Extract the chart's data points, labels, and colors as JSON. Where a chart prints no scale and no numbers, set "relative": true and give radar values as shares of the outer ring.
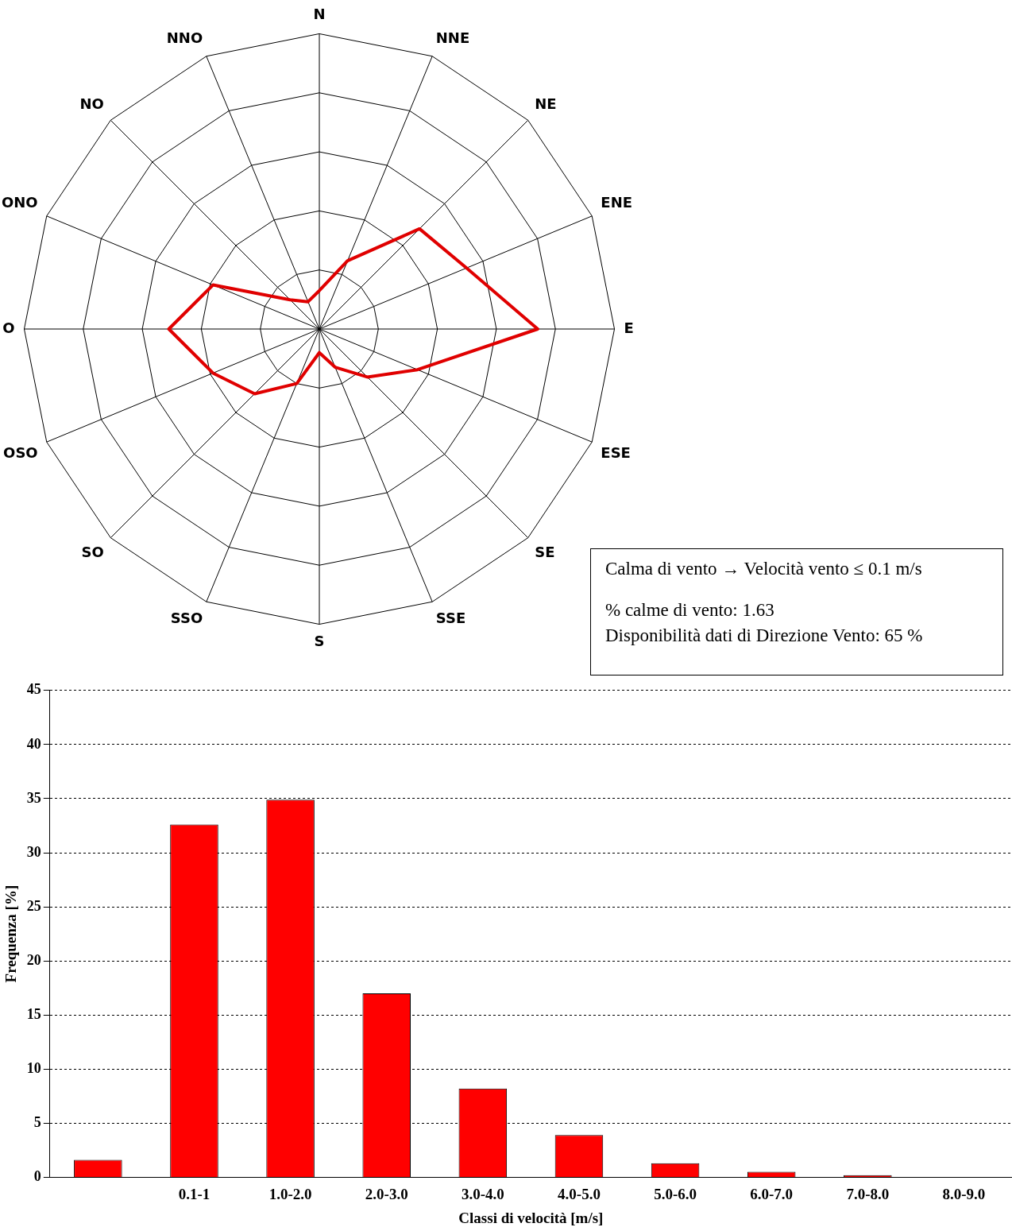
{
  "chart_data": [
    {
      "type": "radar",
      "relative": true,
      "categories": [
        "N",
        "NNE",
        "NE",
        "ENE",
        "E",
        "ESE",
        "SE",
        "SSE",
        "S",
        "SSO",
        "SO",
        "OSO",
        "O",
        "ONO",
        "NO",
        "NNO"
      ],
      "series": [
        {
          "color": "#e00000",
          "values": [
            0.13,
            0.25,
            0.48,
            0.54,
            0.74,
            0.36,
            0.23,
            0.14,
            0.08,
            0.2,
            0.31,
            0.39,
            0.51,
            0.39,
            0.14,
            0.1
          ]
        }
      ],
      "grid": true,
      "legend": false,
      "marker": "none",
      "annotations": [
        "Calma di vento → Velocità vento ≤ 0.1 m/s",
        "% calme di vento: 1.63",
        "Disponibilità dati di Direzione Vento: 65 %"
      ]
    },
    {
      "type": "bar",
      "categories": [
        null,
        "0.1-1",
        "1.0-2.0",
        "2.0-3.0",
        "3.0-4.0",
        "4.0-5.0",
        "5.0-6.0",
        "6.0-7.0",
        "7.0-8.0",
        "8.0-9.0"
      ],
      "values": [
        1.6,
        32.6,
        34.9,
        17,
        8.2,
        3.9,
        1.3,
        0.5,
        0.2,
        0
      ],
      "color": "#ff0000",
      "xlabel": "Classi di velocità [m/s]",
      "ylabel": "Frequenza [%]",
      "ylim": [
        0,
        45
      ],
      "yticks": [
        0,
        5,
        10,
        15,
        20,
        25,
        30,
        35,
        40,
        45
      ],
      "grid": "y",
      "legend": false
    }
  ]
}
